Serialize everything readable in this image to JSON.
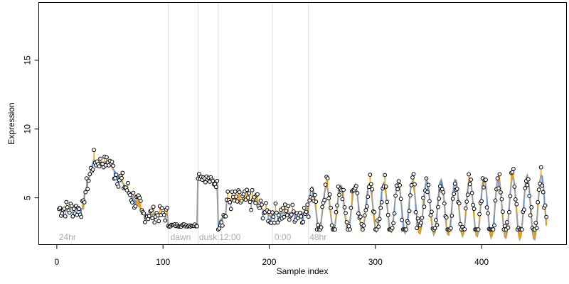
{
  "chart_data": {
    "type": "scatter",
    "xlabel": "Sample index",
    "ylabel": "Expression",
    "xlim": [
      -17,
      480
    ],
    "ylim": [
      1.6,
      19.2
    ],
    "x_ticks": [
      0,
      100,
      200,
      300,
      400
    ],
    "y_ticks": [
      5,
      10,
      15
    ],
    "grid": false,
    "colors": {
      "smooth_line": "#9e9e9e",
      "residual_above": "#f0a000",
      "residual_below": "#5b8fd6",
      "marker_vertical_line": "#dcdcdc",
      "annotation_text": "#aaaaaa"
    },
    "markers": [
      {
        "x": 105,
        "label": ""
      },
      {
        "x": 133,
        "label": ""
      },
      {
        "x": 152,
        "label": ""
      },
      {
        "x": 203,
        "label": ""
      },
      {
        "x": 237,
        "label": ""
      }
    ],
    "annotations": [
      {
        "x": 2,
        "label": "24hr"
      },
      {
        "x": 107,
        "label": "dawn"
      },
      {
        "x": 134,
        "label": "dusk"
      },
      {
        "x": 153,
        "label": "12:00"
      },
      {
        "x": 205,
        "label": "0:00"
      },
      {
        "x": 238,
        "label": "48hr"
      }
    ],
    "segments": [
      {
        "x0": 2,
        "x1": 26,
        "pattern": "plateau",
        "base": 4.2,
        "amp": 0,
        "period": 1,
        "noise": 0.65
      },
      {
        "x0": 26,
        "x1": 36,
        "pattern": "ramp",
        "base": 5.2,
        "end": 7.8,
        "noise": 0.7
      },
      {
        "x0": 36,
        "x1": 52,
        "pattern": "plateau",
        "base": 7.6,
        "amp": 0,
        "period": 1,
        "noise": 0.45
      },
      {
        "x0": 52,
        "x1": 80,
        "pattern": "ramp",
        "base": 7.2,
        "end": 4.2,
        "noise": 0.8
      },
      {
        "x0": 80,
        "x1": 105,
        "pattern": "plateau",
        "base": 3.8,
        "amp": 0,
        "period": 1,
        "noise": 0.6
      },
      {
        "x0": 105,
        "x1": 133,
        "pattern": "plateau",
        "base": 3.0,
        "amp": 0,
        "period": 1,
        "noise": 0.1
      },
      {
        "x0": 133,
        "x1": 152,
        "pattern": "ramp",
        "base": 6.7,
        "end": 6.0,
        "noise": 0.3
      },
      {
        "x0": 152,
        "x1": 160,
        "pattern": "ramp",
        "base": 3.2,
        "end": 3.8,
        "noise": 0.6
      },
      {
        "x0": 160,
        "x1": 190,
        "pattern": "plateau",
        "base": 4.8,
        "amp": 0,
        "period": 1,
        "noise": 0.8
      },
      {
        "x0": 190,
        "x1": 203,
        "pattern": "ramp",
        "base": 4.4,
        "end": 3.6,
        "noise": 0.7
      },
      {
        "x0": 203,
        "x1": 237,
        "pattern": "plateau",
        "base": 3.9,
        "amp": 0,
        "period": 1,
        "noise": 0.75
      },
      {
        "x0": 237,
        "x1": 462,
        "pattern": "wave",
        "base": 4.3,
        "amp": 2.0,
        "period": 13.5,
        "noise": 0.85
      }
    ]
  }
}
